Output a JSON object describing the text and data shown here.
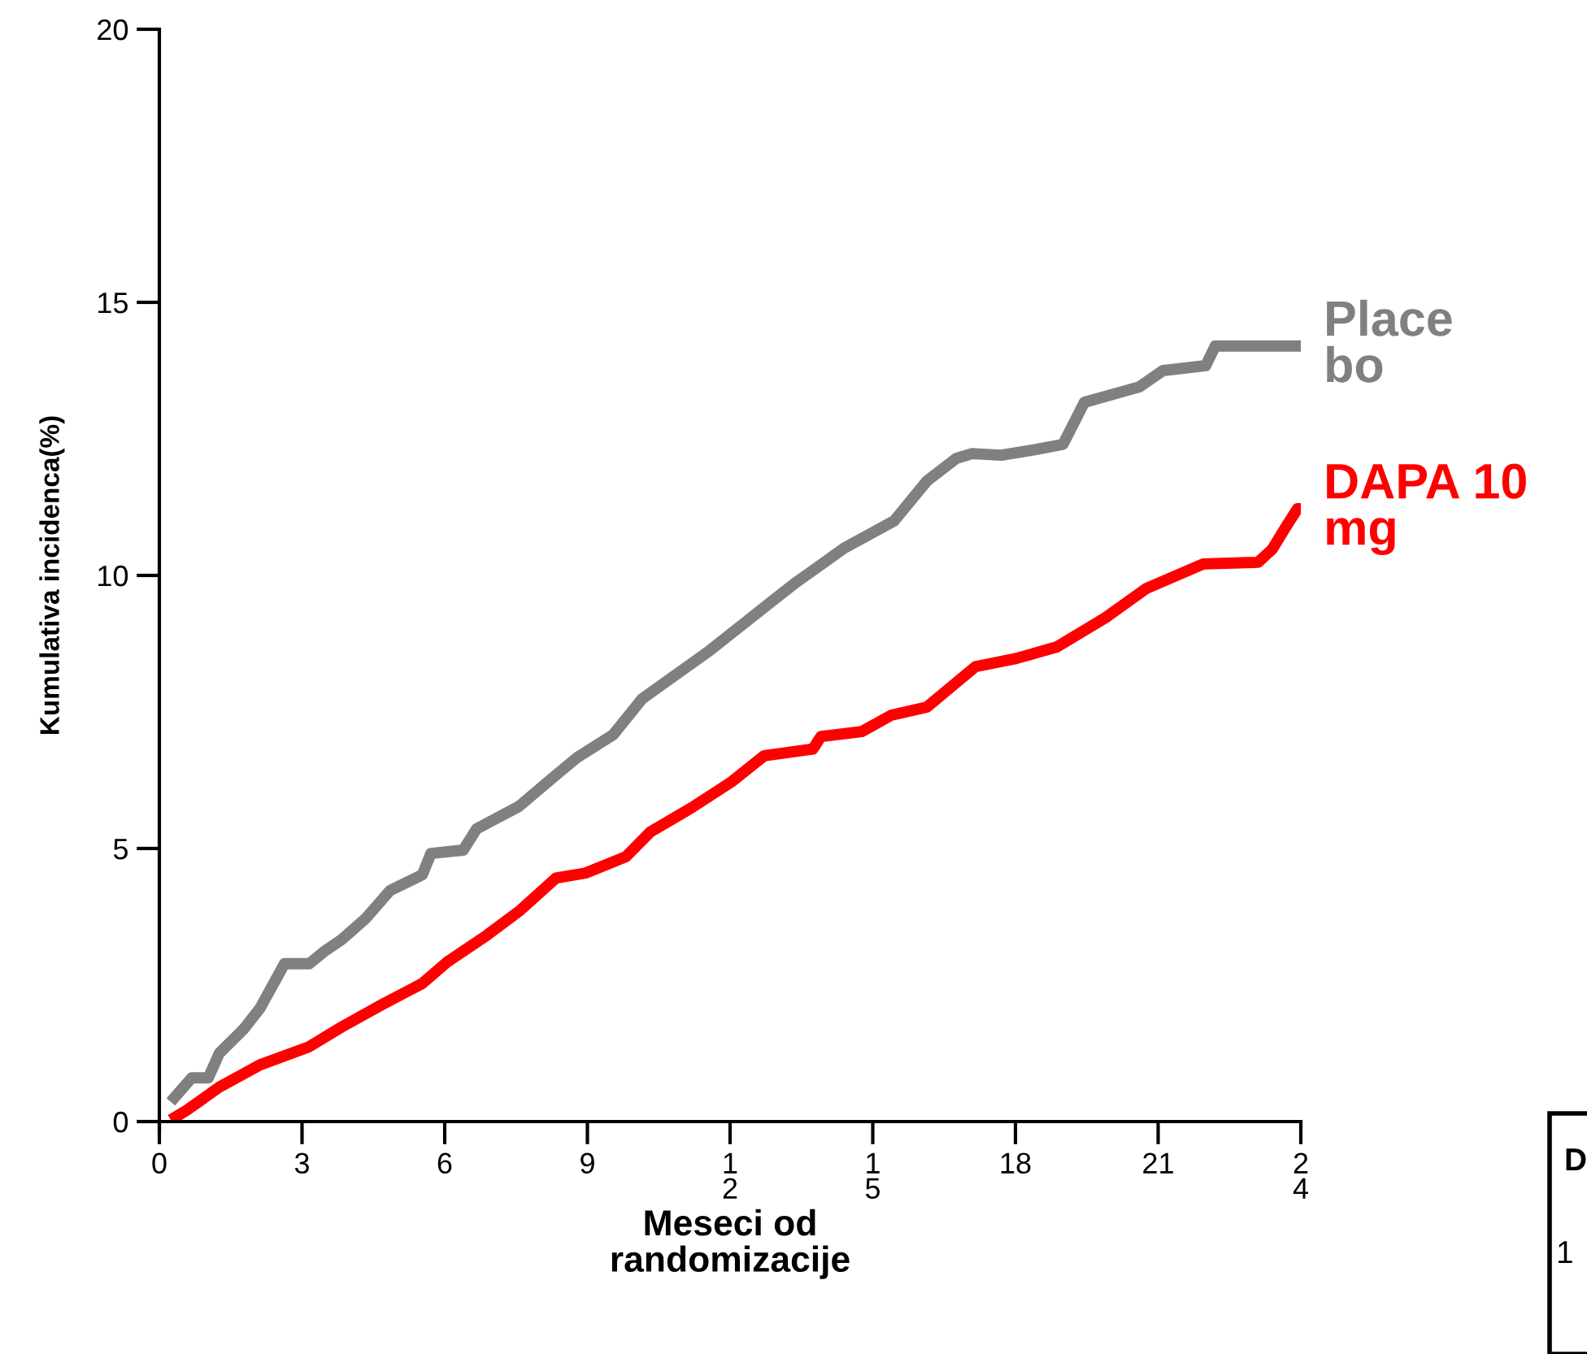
{
  "chart_data": {
    "type": "line",
    "xlabel": "Meseci od\nrandomizacije",
    "ylabel": "Kumulativa incidenca(%)",
    "xlim": [
      0,
      24
    ],
    "ylim": [
      0,
      20
    ],
    "xticks": [
      0,
      3,
      6,
      9,
      {
        "value": 12,
        "label": "1\n2"
      },
      {
        "value": 15,
        "label": "1\n5"
      },
      18,
      21,
      {
        "value": 24,
        "label": "2\n4"
      }
    ],
    "yticks": [
      0,
      5,
      10,
      15,
      20
    ],
    "grid": false,
    "legend": false,
    "marker": "none",
    "line_style": "solid",
    "series": [
      {
        "name": "Place\nbo",
        "color": "#808080",
        "x": [
          0.24,
          0.68,
          1.03,
          1.26,
          1.78,
          2.12,
          2.63,
          3.15,
          3.49,
          3.83,
          4.34,
          4.85,
          5.53,
          5.71,
          6.39,
          6.67,
          7.56,
          8.21,
          8.79,
          9.54,
          10.15,
          10.73,
          11.58,
          12.87,
          13.4,
          14.4,
          15.45,
          16.14,
          16.75,
          17.09,
          17.7,
          18.4,
          19.0,
          19.45,
          20.6,
          21.1,
          22.0,
          22.2,
          24.0
        ],
        "values": [
          0.36,
          0.8,
          0.8,
          1.25,
          1.7,
          2.08,
          2.89,
          2.89,
          3.13,
          3.33,
          3.72,
          4.23,
          4.52,
          4.91,
          4.97,
          5.36,
          5.77,
          6.25,
          6.67,
          7.08,
          7.74,
          8.1,
          8.63,
          9.52,
          9.88,
          10.5,
          11.0,
          11.73,
          12.14,
          12.23,
          12.2,
          12.3,
          12.4,
          13.17,
          13.45,
          13.75,
          13.84,
          14.2,
          14.2
        ]
      },
      {
        "name": "DAPA 10\nmg",
        "color": "#ff0000",
        "x": [
          0.24,
          0.58,
          1.26,
          2.12,
          3.15,
          3.83,
          4.68,
          5.53,
          6.05,
          6.9,
          7.59,
          8.34,
          8.96,
          9.81,
          10.32,
          11.18,
          12.03,
          12.72,
          13.74,
          13.91,
          14.77,
          15.39,
          16.14,
          17.16,
          18.02,
          18.87,
          19.9,
          20.75,
          21.95,
          23.1,
          23.4,
          23.73,
          23.93,
          24.0
        ],
        "values": [
          0.03,
          0.21,
          0.63,
          1.04,
          1.37,
          1.73,
          2.14,
          2.53,
          2.92,
          3.42,
          3.87,
          4.46,
          4.55,
          4.85,
          5.3,
          5.74,
          6.22,
          6.7,
          6.82,
          7.05,
          7.14,
          7.44,
          7.59,
          8.33,
          8.48,
          8.69,
          9.23,
          9.76,
          10.21,
          10.24,
          10.48,
          10.95,
          11.22,
          11.22
        ]
      }
    ],
    "annotations": [
      "D",
      "1"
    ]
  }
}
